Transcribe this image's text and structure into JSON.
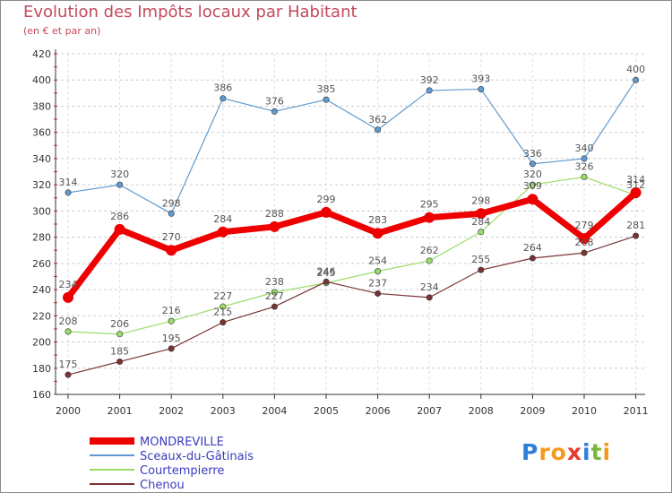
{
  "chart_data": {
    "type": "line",
    "title": "Evolution des Impôts locaux par Habitant",
    "subtitle": "(en € et par an)",
    "xlabel": "",
    "ylabel": "",
    "ylim": [
      160,
      420
    ],
    "y_ticks": [
      160,
      180,
      200,
      220,
      240,
      260,
      280,
      300,
      320,
      340,
      360,
      380,
      400,
      420
    ],
    "categories": [
      "2000",
      "2001",
      "2002",
      "2003",
      "2004",
      "2005",
      "2006",
      "2007",
      "2008",
      "2009",
      "2010",
      "2011"
    ],
    "grid": "horizontal dashed",
    "legend_position": "bottom-left",
    "series": [
      {
        "name": "MONDREVILLE",
        "color": "#ee0000",
        "values": [
          234,
          286,
          270,
          284,
          288,
          299,
          283,
          295,
          298,
          309,
          279,
          314
        ]
      },
      {
        "name": "Sceaux-du-Gâtinais",
        "color": "#5f9bd0",
        "values": [
          314,
          320,
          298,
          386,
          376,
          385,
          362,
          392,
          393,
          336,
          340,
          400
        ]
      },
      {
        "name": "Courtempierre",
        "color": "#99dd66",
        "values": [
          208,
          206,
          216,
          227,
          238,
          245,
          254,
          262,
          284,
          320,
          326,
          312
        ]
      },
      {
        "name": "Chenou",
        "color": "#7a3333",
        "values": [
          175,
          185,
          195,
          215,
          227,
          246,
          237,
          234,
          255,
          264,
          268,
          281
        ]
      }
    ]
  },
  "logo": {
    "letters": [
      "P",
      "r",
      "o",
      "x",
      "i",
      "t",
      "i"
    ]
  },
  "colors": {
    "title": "#c4495b",
    "legend_text": "#3b3bbd"
  }
}
